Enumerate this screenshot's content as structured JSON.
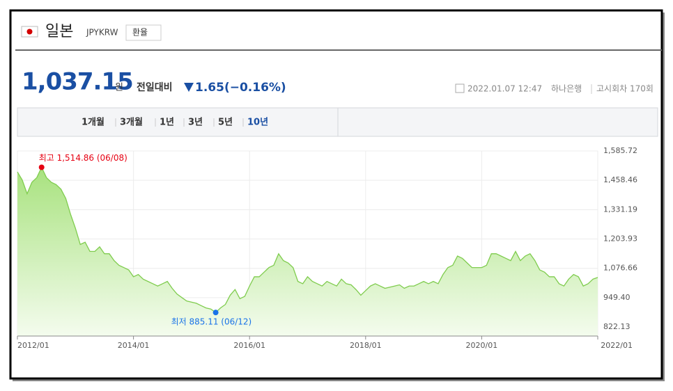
{
  "header": {
    "country": "일본",
    "code": "JPYKRW",
    "button": "환율"
  },
  "quote": {
    "price": "1,037.15",
    "unit": "원",
    "change_label": "전일대비",
    "change": "1.65(−0.16%)",
    "date": "2022.01.07 12:47",
    "bank": "하나은행",
    "round": "고시회차 170회"
  },
  "tabs": {
    "items": [
      "1개월",
      "3개월",
      "1년",
      "3년",
      "5년",
      "10년"
    ],
    "selected": 5
  },
  "chart_data": {
    "type": "area",
    "color": "#7fcc4e",
    "fill": "#b5e892",
    "grid": true,
    "xlim": [
      "2012/01",
      "2022/01"
    ],
    "xticks": [
      "2012/01",
      "2014/01",
      "2016/01",
      "2018/01",
      "2020/01",
      "2022/01"
    ],
    "ylim": [
      783,
      1585.72
    ],
    "yticks": [
      {
        "value": 822.13,
        "label": "822.13"
      },
      {
        "value": 949.4,
        "label": "949.40"
      },
      {
        "value": 1076.66,
        "label": "1,076.66"
      },
      {
        "value": 1203.93,
        "label": "1,203.93"
      },
      {
        "value": 1331.19,
        "label": "1,331.19"
      },
      {
        "value": 1458.46,
        "label": "1,458.46"
      },
      {
        "value": 1585.72,
        "label": "1,585.72"
      }
    ],
    "annotations": [
      {
        "text": "최고 1,514.86 (06/08)",
        "x": "2012/06",
        "value": 1514.86,
        "color": "#e60012"
      },
      {
        "text": "최저 885.11 (06/12)",
        "x": "2015/06",
        "value": 885.11,
        "color": "#1a73e8"
      }
    ],
    "x": [
      "2012/01",
      "2012/02",
      "2012/03",
      "2012/04",
      "2012/05",
      "2012/06",
      "2012/07",
      "2012/08",
      "2012/09",
      "2012/10",
      "2012/11",
      "2012/12",
      "2013/01",
      "2013/02",
      "2013/03",
      "2013/04",
      "2013/05",
      "2013/06",
      "2013/07",
      "2013/08",
      "2013/09",
      "2013/10",
      "2013/11",
      "2013/12",
      "2014/01",
      "2014/02",
      "2014/03",
      "2014/04",
      "2014/05",
      "2014/06",
      "2014/07",
      "2014/08",
      "2014/09",
      "2014/10",
      "2014/11",
      "2014/12",
      "2015/01",
      "2015/02",
      "2015/03",
      "2015/04",
      "2015/05",
      "2015/06",
      "2015/07",
      "2015/08",
      "2015/09",
      "2015/10",
      "2015/11",
      "2015/12",
      "2016/01",
      "2016/02",
      "2016/03",
      "2016/04",
      "2016/05",
      "2016/06",
      "2016/07",
      "2016/08",
      "2016/09",
      "2016/10",
      "2016/11",
      "2016/12",
      "2017/01",
      "2017/02",
      "2017/03",
      "2017/04",
      "2017/05",
      "2017/06",
      "2017/07",
      "2017/08",
      "2017/09",
      "2017/10",
      "2017/11",
      "2017/12",
      "2018/01",
      "2018/02",
      "2018/03",
      "2018/04",
      "2018/05",
      "2018/06",
      "2018/07",
      "2018/08",
      "2018/09",
      "2018/10",
      "2018/11",
      "2018/12",
      "2019/01",
      "2019/02",
      "2019/03",
      "2019/04",
      "2019/05",
      "2019/06",
      "2019/07",
      "2019/08",
      "2019/09",
      "2019/10",
      "2019/11",
      "2019/12",
      "2020/01",
      "2020/02",
      "2020/03",
      "2020/04",
      "2020/05",
      "2020/06",
      "2020/07",
      "2020/08",
      "2020/09",
      "2020/10",
      "2020/11",
      "2020/12",
      "2021/01",
      "2021/02",
      "2021/03",
      "2021/04",
      "2021/05",
      "2021/06",
      "2021/07",
      "2021/08",
      "2021/09",
      "2021/10",
      "2021/11",
      "2021/12",
      "2022/01"
    ],
    "values": [
      1495,
      1460,
      1400,
      1450,
      1470,
      1514.86,
      1470,
      1450,
      1440,
      1420,
      1380,
      1310,
      1250,
      1180,
      1190,
      1150,
      1150,
      1170,
      1140,
      1140,
      1110,
      1090,
      1080,
      1070,
      1040,
      1050,
      1030,
      1020,
      1010,
      1000,
      1010,
      1020,
      990,
      965,
      950,
      935,
      930,
      925,
      915,
      905,
      900,
      885.11,
      905,
      920,
      960,
      985,
      945,
      955,
      1000,
      1040,
      1040,
      1060,
      1080,
      1090,
      1140,
      1110,
      1100,
      1080,
      1020,
      1010,
      1040,
      1020,
      1010,
      1000,
      1020,
      1010,
      1000,
      1030,
      1010,
      1005,
      985,
      960,
      980,
      1000,
      1010,
      1000,
      990,
      995,
      1000,
      1005,
      990,
      1000,
      1000,
      1010,
      1020,
      1010,
      1020,
      1010,
      1050,
      1080,
      1090,
      1130,
      1120,
      1100,
      1080,
      1080,
      1080,
      1090,
      1140,
      1140,
      1130,
      1120,
      1110,
      1150,
      1110,
      1130,
      1140,
      1110,
      1070,
      1060,
      1040,
      1040,
      1010,
      1000,
      1030,
      1050,
      1040,
      1000,
      1010,
      1030,
      1037.15
    ]
  }
}
